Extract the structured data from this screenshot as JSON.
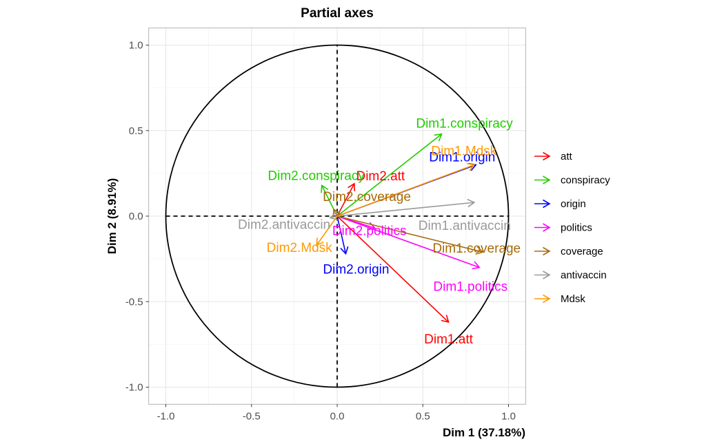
{
  "chart_data": {
    "type": "scatter",
    "title": "Partial axes",
    "xlabel": "Dim 1 (37.18%)",
    "ylabel": "Dim 2 (8.91%)",
    "xlim": [
      -1.1,
      1.1
    ],
    "ylim": [
      -1.1,
      1.1
    ],
    "x_ticks": [
      -1.0,
      -0.5,
      0.0,
      0.5,
      1.0
    ],
    "y_ticks": [
      -1.0,
      -0.5,
      0.0,
      0.5,
      1.0
    ],
    "x_tick_labels": [
      "-1.0",
      "-0.5",
      "0.0",
      "0.5",
      "1.0"
    ],
    "y_tick_labels": [
      "-1.0",
      "-0.5",
      "0.0",
      "0.5",
      "1.0"
    ],
    "grid": true,
    "unit_circle": true,
    "legend_position": "right",
    "groups": [
      {
        "name": "att",
        "color": "#FF0000"
      },
      {
        "name": "conspiracy",
        "color": "#22CC00"
      },
      {
        "name": "origin",
        "color": "#0000FF"
      },
      {
        "name": "politics",
        "color": "#FF00FF"
      },
      {
        "name": "coverage",
        "color": "#A66B0A"
      },
      {
        "name": "antivaccin",
        "color": "#999999"
      },
      {
        "name": "Mdsk",
        "color": "#FF9900"
      }
    ],
    "vectors": [
      {
        "label": "Dim1.att",
        "group": "att",
        "x": 0.65,
        "y": -0.62
      },
      {
        "label": "Dim2.att",
        "group": "att",
        "x": 0.1,
        "y": 0.19
      },
      {
        "label": "Dim1.conspiracy",
        "group": "conspiracy",
        "x": 0.61,
        "y": 0.48
      },
      {
        "label": "Dim2.conspiracy",
        "group": "conspiracy",
        "x": -0.09,
        "y": 0.18
      },
      {
        "label": "Dim1.origin",
        "group": "origin",
        "x": 0.81,
        "y": 0.3
      },
      {
        "label": "Dim2.origin",
        "group": "origin",
        "x": 0.05,
        "y": -0.22
      },
      {
        "label": "Dim1.politics",
        "group": "politics",
        "x": 0.83,
        "y": -0.3
      },
      {
        "label": "Dim2.politics",
        "group": "politics",
        "x": 0.22,
        "y": -0.07
      },
      {
        "label": "Dim1.coverage",
        "group": "coverage",
        "x": 0.85,
        "y": -0.21
      },
      {
        "label": "Dim2.coverage",
        "group": "coverage",
        "x": -0.02,
        "y": 0.04
      },
      {
        "label": "Dim1.antivaccin",
        "group": "antivaccin",
        "x": 0.8,
        "y": 0.08
      },
      {
        "label": "Dim2.antivaccin",
        "group": "antivaccin",
        "x": -0.04,
        "y": -0.01
      },
      {
        "label": "Dim1.Mdsk",
        "group": "Mdsk",
        "x": 0.8,
        "y": 0.3
      },
      {
        "label": "Dim2.Mdsk",
        "group": "Mdsk",
        "x": -0.12,
        "y": -0.17
      }
    ]
  }
}
